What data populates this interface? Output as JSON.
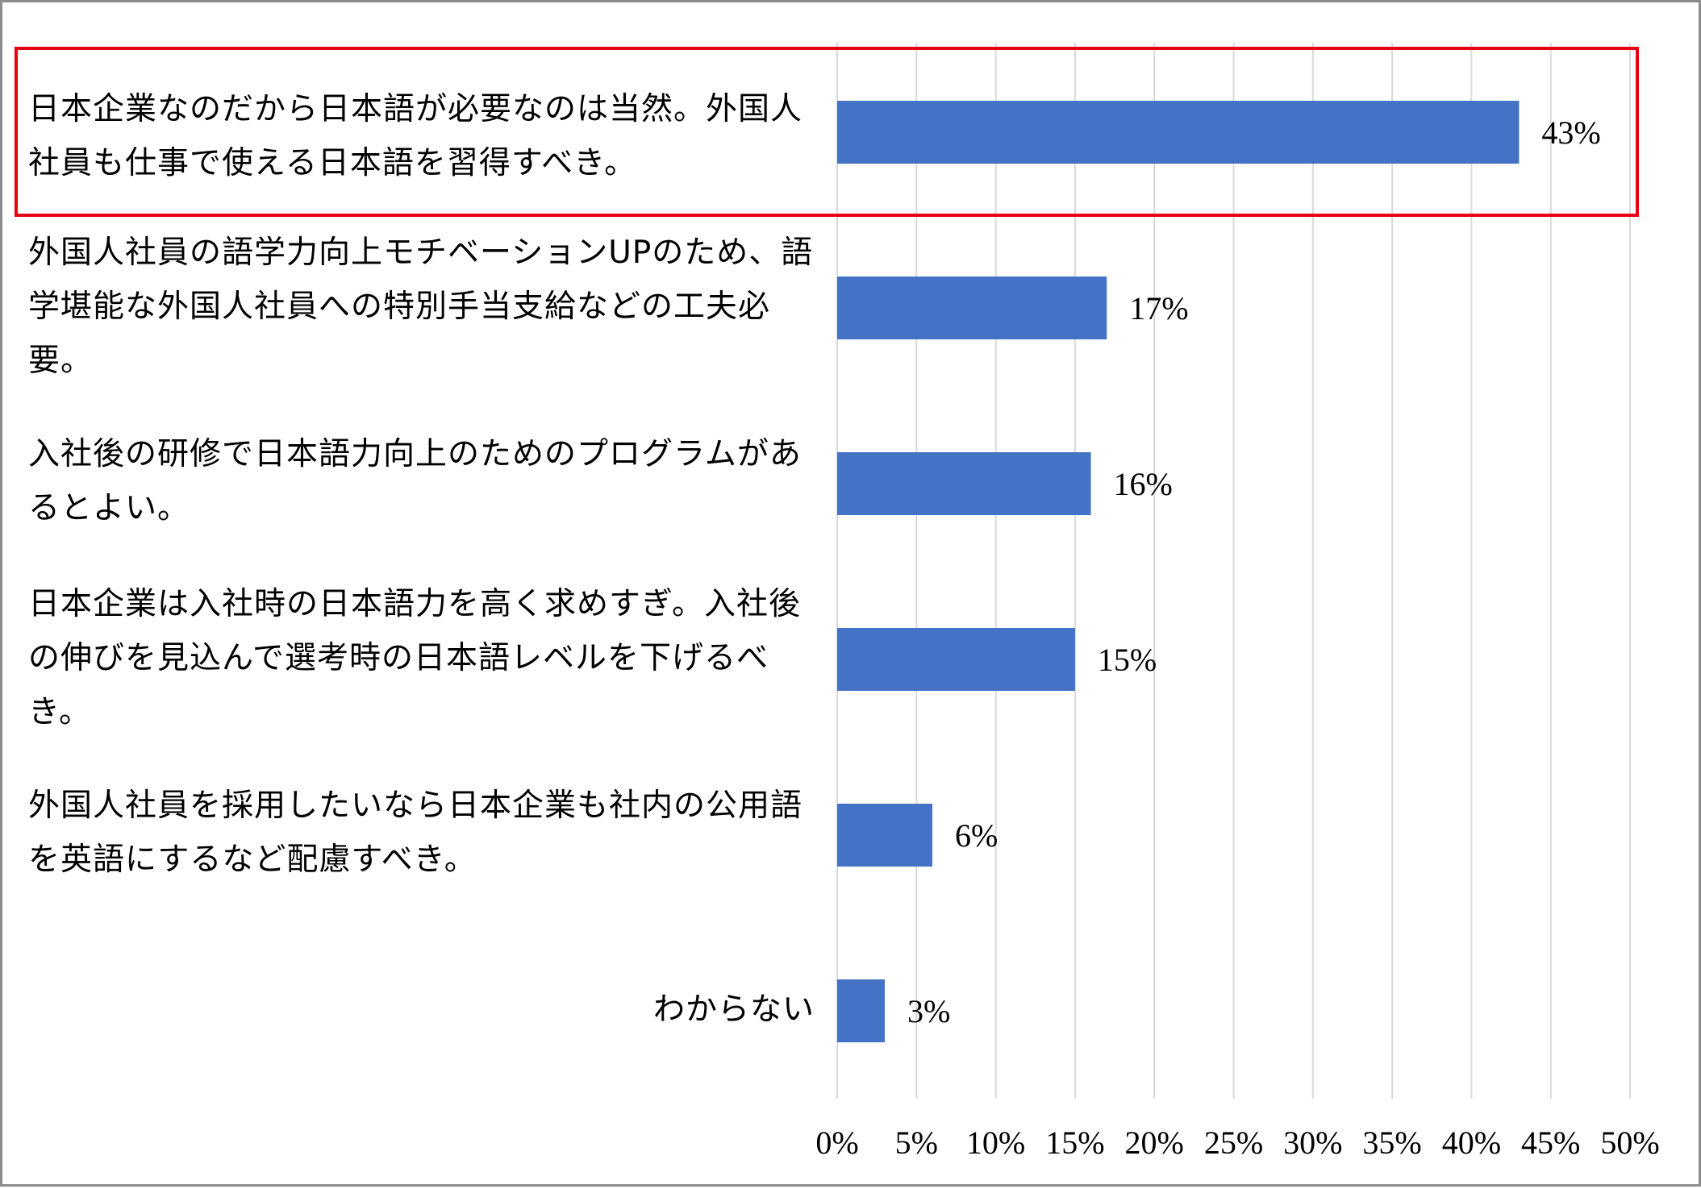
{
  "chart_data": {
    "type": "bar",
    "orientation": "horizontal",
    "categories": [
      "日本企業なのだから日本語が必要なのは当然。外国人社員も仕事で使える日本語を習得すべき。",
      "外国人社員の語学力向上モチベーションUPのため、語学堪能な外国人社員への特別手当支給などの工夫必要。",
      "入社後の研修で日本語力向上のためのプログラムがあるとよい。",
      "日本企業は入社時の日本語力を高く求めすぎ。入社後の伸びを見込んで選考時の日本語レベルを下げるべき。",
      "外国人社員を採用したいなら日本企業も社内の公用語を英語にするなど配慮すべき。",
      "わからない"
    ],
    "values": [
      43,
      17,
      16,
      15,
      6,
      3
    ],
    "value_labels": [
      "43%",
      "17%",
      "16%",
      "15%",
      "6%",
      "3%"
    ],
    "xlim": [
      0,
      50
    ],
    "ticks": [
      0,
      5,
      10,
      15,
      20,
      25,
      30,
      35,
      40,
      45,
      50
    ],
    "tick_labels": [
      "0%",
      "5%",
      "10%",
      "15%",
      "20%",
      "25%",
      "30%",
      "35%",
      "40%",
      "45%",
      "50%"
    ],
    "grid": true,
    "highlighted_category_index": 0,
    "colors": {
      "bar": "#4472c4",
      "grid": "#d9d9d9",
      "highlight_border": "#e60012",
      "frame": "#8c8c8c"
    }
  }
}
